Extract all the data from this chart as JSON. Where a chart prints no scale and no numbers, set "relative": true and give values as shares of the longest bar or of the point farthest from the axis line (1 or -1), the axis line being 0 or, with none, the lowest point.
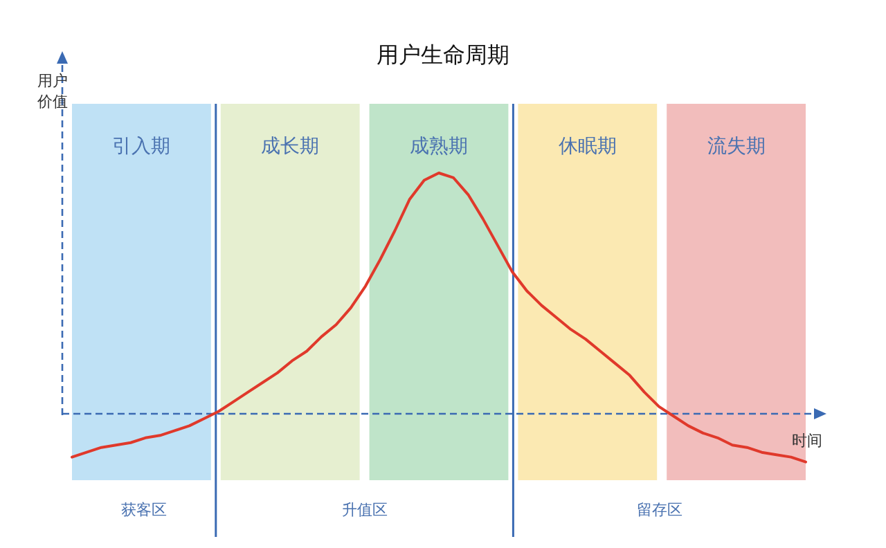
{
  "chart_data": {
    "type": "line",
    "relative": true,
    "title": "用户生命周期",
    "xlabel": "时间",
    "ylabel": "用户价值",
    "categories": [
      null,
      null,
      null,
      null,
      null,
      null,
      null,
      null,
      null,
      null,
      null,
      null,
      null,
      null,
      null,
      null,
      null,
      null,
      null,
      null,
      null,
      null,
      null,
      null,
      null,
      null,
      null,
      null,
      null,
      null,
      null,
      null,
      null,
      null,
      null,
      null,
      null,
      null,
      null,
      null,
      null,
      null,
      null,
      null,
      null,
      null,
      null,
      null,
      null,
      null,
      null
    ],
    "series": [
      {
        "color": "#e0392b",
        "values": [
          -0.18,
          -0.16,
          -0.14,
          -0.13,
          -0.12,
          -0.1,
          -0.09,
          -0.07,
          -0.05,
          -0.02,
          0.01,
          0.05,
          0.09,
          0.13,
          0.17,
          0.22,
          0.26,
          0.32,
          0.37,
          0.44,
          0.53,
          0.64,
          0.76,
          0.89,
          0.97,
          1.0,
          0.98,
          0.91,
          0.81,
          0.7,
          0.59,
          0.51,
          0.45,
          0.4,
          0.35,
          0.31,
          0.26,
          0.21,
          0.16,
          0.09,
          0.03,
          -0.01,
          -0.05,
          -0.08,
          -0.1,
          -0.13,
          -0.14,
          -0.16,
          -0.17,
          -0.18,
          -0.2
        ]
      }
    ],
    "annotations": [
      "引入期",
      "成长期",
      "成熟期",
      "休眠期",
      "流失期",
      "获客区",
      "升值区",
      "留存区"
    ],
    "ref_lines": [
      {
        "axis": "y",
        "value": 0,
        "color": "#3a6ab3",
        "line_style": "dashed"
      }
    ],
    "marker": "none",
    "line_style": "solid"
  }
}
